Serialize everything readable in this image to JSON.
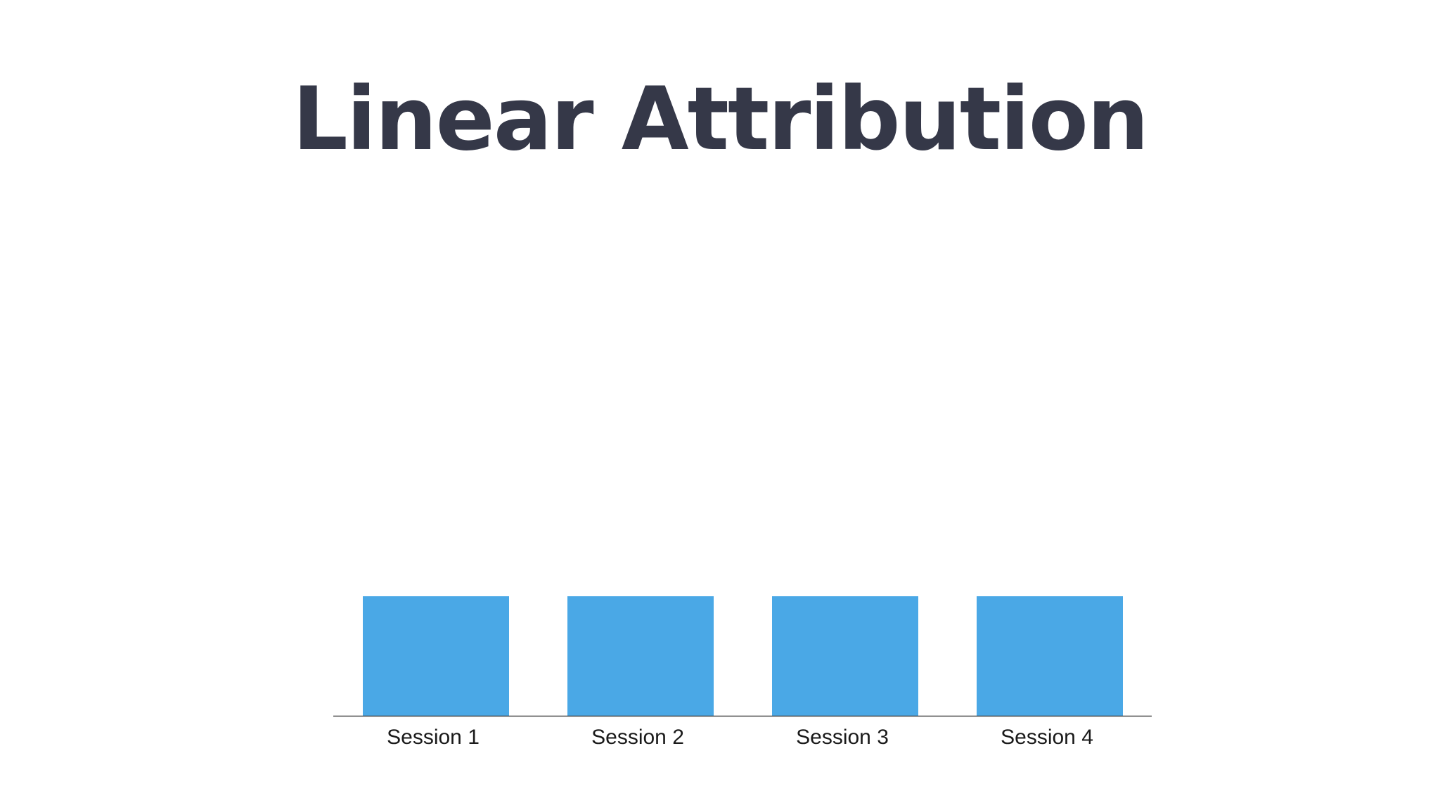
{
  "colors": {
    "title": "#353848",
    "bar": "#4aa8e6",
    "axis": "#4a4a4a",
    "tick_label": "#1a1a1a"
  },
  "chart_data": {
    "type": "bar",
    "title": "Linear Attribution",
    "categories": [
      "Session 1",
      "Session 2",
      "Session 3",
      "Session 4"
    ],
    "values": [
      25,
      25,
      25,
      25
    ],
    "xlabel": "",
    "ylabel": "",
    "ylim": [
      0,
      100
    ],
    "grid": false,
    "legend": "none"
  }
}
